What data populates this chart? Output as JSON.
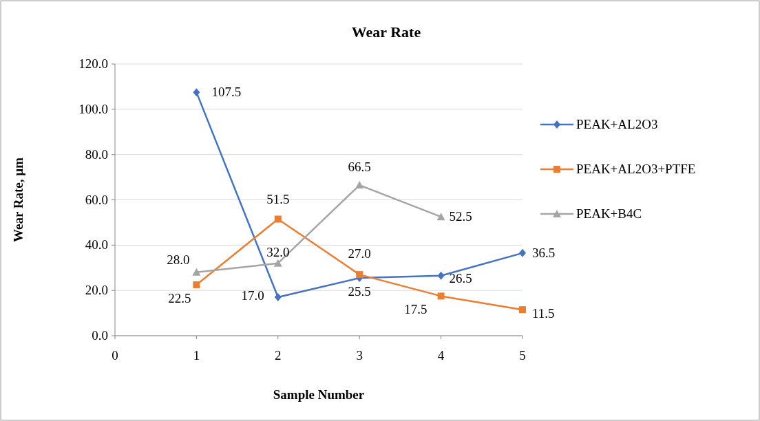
{
  "chart_data": {
    "type": "line",
    "title": "Wear Rate",
    "xlabel": "Sample Number",
    "ylabel": "Wear Rate,  µm",
    "xlim": [
      0,
      5
    ],
    "xticks": [
      0,
      1,
      2,
      3,
      4,
      5
    ],
    "ylim": [
      0,
      120
    ],
    "yticks": [
      {
        "value": 0,
        "label": "0.0"
      },
      {
        "value": 20,
        "label": "20.0"
      },
      {
        "value": 40,
        "label": "40.0"
      },
      {
        "value": 60,
        "label": "60.0"
      },
      {
        "value": 80,
        "label": "80.0"
      },
      {
        "value": 100,
        "label": "100.0"
      },
      {
        "value": 120,
        "label": "120.0"
      }
    ],
    "grid": "y",
    "legend": "right",
    "series": [
      {
        "name": "PEAK+AL2O3",
        "color": "#4472c4",
        "marker": "diamond",
        "x": [
          1,
          2,
          3,
          4,
          5
        ],
        "values": [
          107.5,
          17.0,
          25.5,
          26.5,
          36.5
        ],
        "value_labels": [
          "107.5",
          "17.0",
          "25.5",
          "26.5",
          "36.5"
        ]
      },
      {
        "name": "PEAK+AL2O3+PTFE",
        "color": "#ed7d31",
        "marker": "square",
        "x": [
          1,
          2,
          3,
          4,
          5
        ],
        "values": [
          22.5,
          51.5,
          27.0,
          17.5,
          11.5
        ],
        "value_labels": [
          "22.5",
          "51.5",
          "27.0",
          "17.5",
          "11.5"
        ]
      },
      {
        "name": "PEAK+B4C",
        "color": "#a5a5a5",
        "marker": "triangle",
        "x": [
          1,
          2,
          3,
          4
        ],
        "values": [
          28.0,
          32.0,
          66.5,
          52.5
        ],
        "value_labels": [
          "28.0",
          "32.0",
          "66.5",
          "52.5"
        ]
      }
    ]
  }
}
